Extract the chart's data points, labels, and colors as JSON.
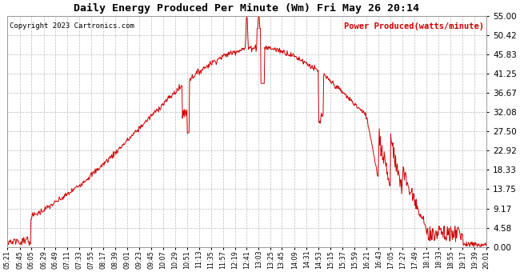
{
  "title": "Daily Energy Produced Per Minute (Wm) Fri May 26 20:14",
  "copyright": "Copyright 2023 Cartronics.com",
  "legend_label": "Power Produced(watts/minute)",
  "line_color": "#cc0000",
  "background_color": "#ffffff",
  "grid_color": "#bbbbbb",
  "ylim": [
    0,
    55.0
  ],
  "yticks": [
    0.0,
    4.58,
    9.17,
    13.75,
    18.33,
    22.92,
    27.5,
    32.08,
    36.67,
    41.25,
    45.83,
    50.42,
    55.0
  ],
  "xtick_labels": [
    "05:21",
    "05:45",
    "06:05",
    "06:29",
    "06:49",
    "07:11",
    "07:33",
    "07:55",
    "08:17",
    "08:39",
    "09:01",
    "09:23",
    "09:45",
    "10:07",
    "10:29",
    "10:51",
    "11:13",
    "11:35",
    "11:57",
    "12:19",
    "12:41",
    "13:03",
    "13:25",
    "13:45",
    "14:09",
    "14:31",
    "14:53",
    "15:15",
    "15:37",
    "15:59",
    "16:21",
    "16:43",
    "17:05",
    "17:27",
    "17:49",
    "18:11",
    "18:33",
    "18:55",
    "19:17",
    "19:39",
    "20:01"
  ],
  "peak_value": 47.5,
  "peak_time": "13:03",
  "start_time": "05:21",
  "end_time": "20:01",
  "sigma": 215
}
